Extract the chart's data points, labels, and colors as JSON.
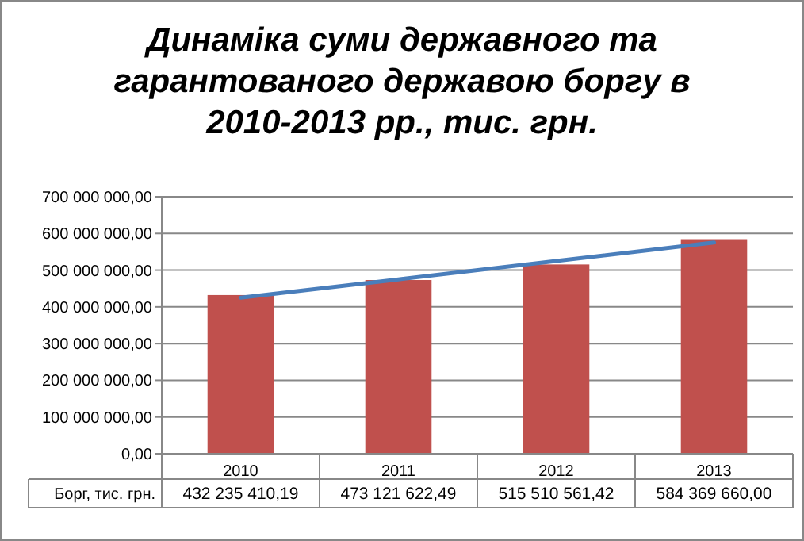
{
  "chart_data": {
    "type": "bar",
    "title": "Динаміка суми державного та гарантованого державою боргу в 2010-2013 рр., тис. грн.",
    "categories": [
      "2010",
      "2011",
      "2012",
      "2013"
    ],
    "series": [
      {
        "name": "Борг, тис. грн.",
        "color": "#c0504d",
        "values": [
          432235410.19,
          473121622.49,
          515510561.42,
          584369660.0
        ],
        "value_labels": [
          "432 235 410,19",
          "473 121 622,49",
          "515 510 561,42",
          "584 369 660,00"
        ]
      },
      {
        "type": "line",
        "color": "#4a7ebb",
        "values": [
          425000000,
          475000000,
          525000000,
          575000000
        ]
      }
    ],
    "ylim": [
      0,
      700000000
    ],
    "yticks": [
      {
        "value": 0,
        "label": "0,00"
      },
      {
        "value": 100000000,
        "label": "100 000 000,00"
      },
      {
        "value": 200000000,
        "label": "200 000 000,00"
      },
      {
        "value": 300000000,
        "label": "300 000 000,00"
      },
      {
        "value": 400000000,
        "label": "400 000 000,00"
      },
      {
        "value": 500000000,
        "label": "500 000 000,00"
      },
      {
        "value": 600000000,
        "label": "600 000 000,00"
      },
      {
        "value": 700000000,
        "label": "700 000 000,00"
      }
    ],
    "grid": "y"
  }
}
